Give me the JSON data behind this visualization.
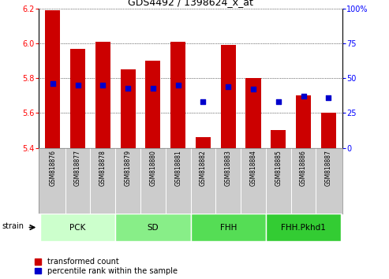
{
  "title": "GDS4492 / 1398624_x_at",
  "samples": [
    "GSM818876",
    "GSM818877",
    "GSM818878",
    "GSM818879",
    "GSM818880",
    "GSM818881",
    "GSM818882",
    "GSM818883",
    "GSM818884",
    "GSM818885",
    "GSM818886",
    "GSM818887"
  ],
  "transformed_count": [
    6.19,
    5.97,
    6.01,
    5.85,
    5.9,
    6.01,
    5.46,
    5.99,
    5.8,
    5.5,
    5.7,
    5.6
  ],
  "percentile_rank": [
    46,
    45,
    45,
    43,
    43,
    45,
    33,
    44,
    42,
    33,
    37,
    36
  ],
  "y_min": 5.4,
  "y_max": 6.2,
  "y_ticks": [
    5.4,
    5.6,
    5.8,
    6.0,
    6.2
  ],
  "y2_ticks": [
    0,
    25,
    50,
    75,
    100
  ],
  "bar_color": "#cc0000",
  "dot_color": "#0000cc",
  "groups": [
    {
      "label": "PCK",
      "start": 0,
      "end": 2,
      "color": "#ccffcc"
    },
    {
      "label": "SD",
      "start": 3,
      "end": 5,
      "color": "#88ee88"
    },
    {
      "label": "FHH",
      "start": 6,
      "end": 8,
      "color": "#55dd55"
    },
    {
      "label": "FHH.Pkhd1",
      "start": 9,
      "end": 11,
      "color": "#33cc33"
    }
  ],
  "legend_labels": [
    "transformed count",
    "percentile rank within the sample"
  ],
  "legend_colors": [
    "#cc0000",
    "#0000cc"
  ],
  "strain_label": "strain",
  "bg_color": "#ffffff",
  "tick_area_color": "#cccccc"
}
